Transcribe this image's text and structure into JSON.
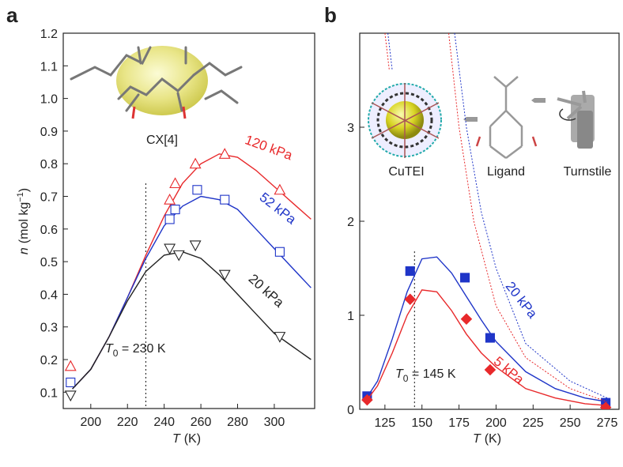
{
  "chart_data": [
    {
      "type": "line",
      "panel": "a",
      "xlabel": {
        "symbol": "T",
        "text": "(K)"
      },
      "ylabel": {
        "symbol": "n",
        "text": "(mol kg",
        "sup": "−1",
        "close": ")"
      },
      "xlim": [
        185,
        322
      ],
      "ylim": [
        0.05,
        1.2
      ],
      "xticks": [
        200,
        220,
        240,
        260,
        280,
        300
      ],
      "yticks": [
        0.1,
        0.2,
        0.3,
        0.4,
        0.5,
        0.6,
        0.7,
        0.8,
        0.9,
        {
          "value": 1,
          "label": "1.0"
        },
        1.1,
        1.2
      ],
      "series": [
        {
          "name": "120 kPa",
          "color": "#e8292b",
          "style": "solid",
          "x": [
            190,
            200,
            210,
            220,
            230,
            240,
            250,
            260,
            270,
            280,
            290,
            300,
            310,
            320
          ],
          "values": [
            0.11,
            0.17,
            0.27,
            0.39,
            0.52,
            0.64,
            0.74,
            0.8,
            0.83,
            0.82,
            0.78,
            0.73,
            0.68,
            0.63
          ],
          "points": {
            "marker": "triangle-up",
            "filled": false,
            "x": [
              189,
              243,
              246,
              257,
              273,
              303
            ],
            "values": [
              0.18,
              0.69,
              0.74,
              0.8,
              0.83,
              0.72
            ]
          }
        },
        {
          "name": "52 kPa",
          "color": "#1f35c8",
          "style": "solid",
          "x": [
            190,
            200,
            210,
            220,
            230,
            240,
            250,
            260,
            270,
            280,
            290,
            300,
            310,
            320
          ],
          "values": [
            0.11,
            0.17,
            0.27,
            0.39,
            0.51,
            0.61,
            0.67,
            0.7,
            0.69,
            0.66,
            0.6,
            0.54,
            0.48,
            0.42
          ],
          "points": {
            "marker": "square",
            "filled": false,
            "x": [
              189,
              243,
              246,
              258,
              273,
              303
            ],
            "values": [
              0.13,
              0.63,
              0.66,
              0.72,
              0.69,
              0.53
            ]
          }
        },
        {
          "name": "20 kPa",
          "color": "#222222",
          "style": "solid",
          "x": [
            190,
            200,
            210,
            220,
            230,
            240,
            250,
            260,
            270,
            280,
            290,
            300,
            310,
            320
          ],
          "values": [
            0.11,
            0.17,
            0.27,
            0.38,
            0.47,
            0.52,
            0.53,
            0.51,
            0.46,
            0.4,
            0.34,
            0.28,
            0.24,
            0.2
          ],
          "points": {
            "marker": "triangle-down",
            "filled": false,
            "x": [
              189,
              243,
              248,
              257,
              273,
              303
            ],
            "values": [
              0.09,
              0.54,
              0.52,
              0.55,
              0.46,
              0.27
            ]
          }
        }
      ],
      "t0": {
        "symbol": "T",
        "subscript": "0",
        "text": " = 230 K",
        "value": 230
      },
      "inset_labels": [
        "CX[4]"
      ]
    },
    {
      "type": "line",
      "panel": "b",
      "xlabel": {
        "symbol": "T",
        "text": "(K)"
      },
      "xlim": [
        108,
        283
      ],
      "ylim": [
        0,
        4
      ],
      "xticks": [
        125,
        150,
        175,
        200,
        225,
        250,
        275
      ],
      "yticks": [
        0,
        1,
        2,
        3
      ],
      "series": [
        {
          "name": "20 kPa",
          "color": "#1f35c8",
          "style": "solid",
          "x": [
            113,
            120,
            130,
            140,
            150,
            160,
            170,
            180,
            190,
            200,
            220,
            240,
            260,
            275
          ],
          "values": [
            0.13,
            0.3,
            0.75,
            1.25,
            1.6,
            1.62,
            1.45,
            1.2,
            0.95,
            0.72,
            0.4,
            0.22,
            0.12,
            0.08
          ],
          "points": {
            "marker": "square",
            "filled": true,
            "x": [
              113,
              142,
              179,
              196,
              274
            ],
            "values": [
              0.14,
              1.47,
              1.4,
              0.76,
              0.07
            ]
          },
          "extrapolation": {
            "x": [
              127,
              130,
              131,
              172,
              180,
              190,
              200,
              220,
              250,
              275
            ],
            "values": [
              4,
              3.6,
              null,
              4,
              3,
              2.1,
              1.5,
              0.7,
              0.3,
              0.12
            ]
          }
        },
        {
          "name": "5 kPa",
          "color": "#e8292b",
          "style": "solid",
          "x": [
            113,
            120,
            130,
            140,
            150,
            160,
            170,
            180,
            190,
            200,
            220,
            240,
            260,
            275
          ],
          "values": [
            0.1,
            0.25,
            0.6,
            1,
            1.27,
            1.25,
            1.05,
            0.8,
            0.6,
            0.45,
            0.22,
            0.12,
            0.06,
            0.04
          ],
          "points": {
            "marker": "diamond",
            "filled": true,
            "x": [
              113,
              142,
              180,
              196,
              274
            ],
            "values": [
              0.1,
              1.17,
              0.96,
              0.42,
              0.02
            ]
          },
          "extrapolation": {
            "x": [
              125,
              128,
              129,
              168,
              175,
              185,
              200,
              220,
              250,
              275
            ],
            "values": [
              4,
              3.6,
              null,
              4,
              3,
              2,
              1.1,
              0.55,
              0.22,
              0.08
            ]
          }
        }
      ],
      "t0": {
        "symbol": "T",
        "subscript": "0",
        "text": " = 145 K",
        "value": 145
      },
      "inset_labels": [
        "CuTEI",
        "Ligand",
        "Turnstile"
      ]
    }
  ]
}
